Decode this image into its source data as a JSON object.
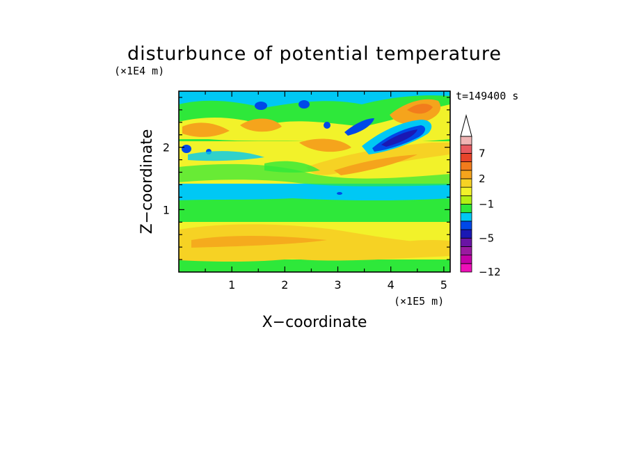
{
  "chart_data": {
    "type": "heatmap",
    "title": "disturbunce of potential temperature",
    "xlabel": "X−coordinate",
    "ylabel": "Z−coordinate",
    "x_unit": "(×1E5 m)",
    "y_unit": "(×1E4 m)",
    "time_label": "t=149400 s",
    "xlim": [
      0,
      5.12
    ],
    "ylim": [
      0,
      2.9
    ],
    "x_ticks": [
      "1",
      "2",
      "3",
      "4",
      "5"
    ],
    "y_ticks": [
      "1",
      "2"
    ],
    "colorbar": {
      "labels": [
        "7",
        "2",
        "−1",
        "−5",
        "−12"
      ],
      "levels_bottom_to_top": [
        -12,
        -10,
        -8,
        -6,
        -5,
        -4,
        -3,
        -2,
        -1,
        0,
        1,
        2,
        3,
        5,
        7,
        9,
        11
      ],
      "colors_bottom_to_top": [
        "#ee10b8",
        "#c400a8",
        "#9a1aa0",
        "#6a14a4",
        "#1a18b4",
        "#0048e8",
        "#00c8f4",
        "#2ee83a",
        "#b4f014",
        "#f2f22a",
        "#f6d224",
        "#f5a41c",
        "#f27c1c",
        "#e8442a",
        "#e85a60",
        "#f0b4b4"
      ],
      "extend": "max-arrow"
    },
    "field_description_by_height": [
      {
        "z": [
          0.0,
          0.12
        ],
        "value_range": [
          -1,
          0
        ]
      },
      {
        "z": [
          0.12,
          0.7
        ],
        "value_range": [
          0,
          2
        ]
      },
      {
        "z": [
          0.7,
          1.15
        ],
        "value_range": [
          -1,
          0
        ]
      },
      {
        "z": [
          1.15,
          1.45
        ],
        "value_range": [
          -2,
          -1
        ]
      },
      {
        "z": [
          1.45,
          2.3
        ],
        "value_range": [
          0,
          3
        ]
      },
      {
        "z": [
          2.3,
          2.9
        ],
        "value_range": [
          -5,
          5
        ]
      }
    ]
  }
}
